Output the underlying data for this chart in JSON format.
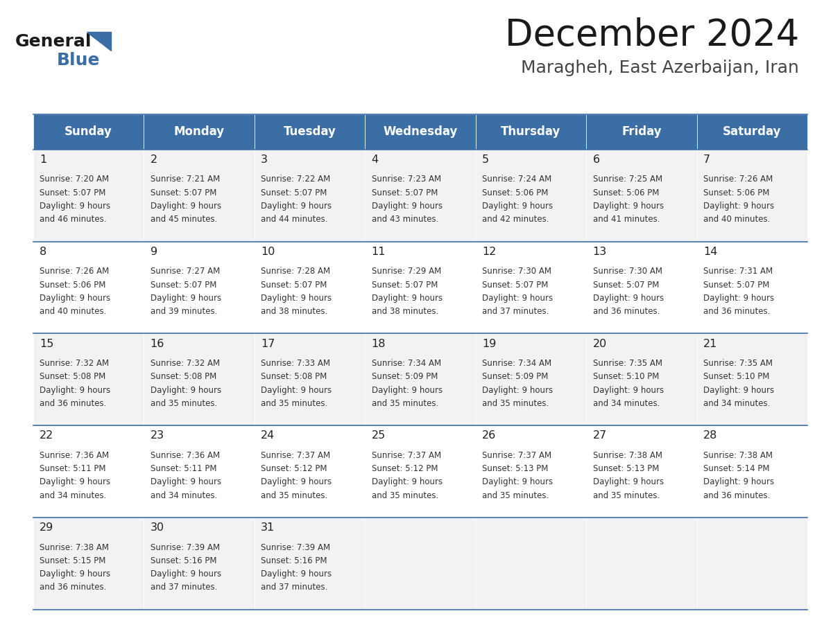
{
  "title": "December 2024",
  "subtitle": "Maragheh, East Azerbaijan, Iran",
  "header_bg": "#3b6ea5",
  "header_text": "#ffffff",
  "day_headers": [
    "Sunday",
    "Monday",
    "Tuesday",
    "Wednesday",
    "Thursday",
    "Friday",
    "Saturday"
  ],
  "row_bg_odd": "#f2f2f2",
  "row_bg_even": "#ffffff",
  "cell_text_color": "#333333",
  "day_num_color": "#222222",
  "border_color": "#3b6ea5",
  "calendar": [
    [
      {
        "day": 1,
        "sunrise": "7:20 AM",
        "sunset": "5:07 PM",
        "daylight": "9 hours and 46 minutes."
      },
      {
        "day": 2,
        "sunrise": "7:21 AM",
        "sunset": "5:07 PM",
        "daylight": "9 hours and 45 minutes."
      },
      {
        "day": 3,
        "sunrise": "7:22 AM",
        "sunset": "5:07 PM",
        "daylight": "9 hours and 44 minutes."
      },
      {
        "day": 4,
        "sunrise": "7:23 AM",
        "sunset": "5:07 PM",
        "daylight": "9 hours and 43 minutes."
      },
      {
        "day": 5,
        "sunrise": "7:24 AM",
        "sunset": "5:06 PM",
        "daylight": "9 hours and 42 minutes."
      },
      {
        "day": 6,
        "sunrise": "7:25 AM",
        "sunset": "5:06 PM",
        "daylight": "9 hours and 41 minutes."
      },
      {
        "day": 7,
        "sunrise": "7:26 AM",
        "sunset": "5:06 PM",
        "daylight": "9 hours and 40 minutes."
      }
    ],
    [
      {
        "day": 8,
        "sunrise": "7:26 AM",
        "sunset": "5:06 PM",
        "daylight": "9 hours and 40 minutes."
      },
      {
        "day": 9,
        "sunrise": "7:27 AM",
        "sunset": "5:07 PM",
        "daylight": "9 hours and 39 minutes."
      },
      {
        "day": 10,
        "sunrise": "7:28 AM",
        "sunset": "5:07 PM",
        "daylight": "9 hours and 38 minutes."
      },
      {
        "day": 11,
        "sunrise": "7:29 AM",
        "sunset": "5:07 PM",
        "daylight": "9 hours and 38 minutes."
      },
      {
        "day": 12,
        "sunrise": "7:30 AM",
        "sunset": "5:07 PM",
        "daylight": "9 hours and 37 minutes."
      },
      {
        "day": 13,
        "sunrise": "7:30 AM",
        "sunset": "5:07 PM",
        "daylight": "9 hours and 36 minutes."
      },
      {
        "day": 14,
        "sunrise": "7:31 AM",
        "sunset": "5:07 PM",
        "daylight": "9 hours and 36 minutes."
      }
    ],
    [
      {
        "day": 15,
        "sunrise": "7:32 AM",
        "sunset": "5:08 PM",
        "daylight": "9 hours and 36 minutes."
      },
      {
        "day": 16,
        "sunrise": "7:32 AM",
        "sunset": "5:08 PM",
        "daylight": "9 hours and 35 minutes."
      },
      {
        "day": 17,
        "sunrise": "7:33 AM",
        "sunset": "5:08 PM",
        "daylight": "9 hours and 35 minutes."
      },
      {
        "day": 18,
        "sunrise": "7:34 AM",
        "sunset": "5:09 PM",
        "daylight": "9 hours and 35 minutes."
      },
      {
        "day": 19,
        "sunrise": "7:34 AM",
        "sunset": "5:09 PM",
        "daylight": "9 hours and 35 minutes."
      },
      {
        "day": 20,
        "sunrise": "7:35 AM",
        "sunset": "5:10 PM",
        "daylight": "9 hours and 34 minutes."
      },
      {
        "day": 21,
        "sunrise": "7:35 AM",
        "sunset": "5:10 PM",
        "daylight": "9 hours and 34 minutes."
      }
    ],
    [
      {
        "day": 22,
        "sunrise": "7:36 AM",
        "sunset": "5:11 PM",
        "daylight": "9 hours and 34 minutes."
      },
      {
        "day": 23,
        "sunrise": "7:36 AM",
        "sunset": "5:11 PM",
        "daylight": "9 hours and 34 minutes."
      },
      {
        "day": 24,
        "sunrise": "7:37 AM",
        "sunset": "5:12 PM",
        "daylight": "9 hours and 35 minutes."
      },
      {
        "day": 25,
        "sunrise": "7:37 AM",
        "sunset": "5:12 PM",
        "daylight": "9 hours and 35 minutes."
      },
      {
        "day": 26,
        "sunrise": "7:37 AM",
        "sunset": "5:13 PM",
        "daylight": "9 hours and 35 minutes."
      },
      {
        "day": 27,
        "sunrise": "7:38 AM",
        "sunset": "5:13 PM",
        "daylight": "9 hours and 35 minutes."
      },
      {
        "day": 28,
        "sunrise": "7:38 AM",
        "sunset": "5:14 PM",
        "daylight": "9 hours and 36 minutes."
      }
    ],
    [
      {
        "day": 29,
        "sunrise": "7:38 AM",
        "sunset": "5:15 PM",
        "daylight": "9 hours and 36 minutes."
      },
      {
        "day": 30,
        "sunrise": "7:39 AM",
        "sunset": "5:16 PM",
        "daylight": "9 hours and 37 minutes."
      },
      {
        "day": 31,
        "sunrise": "7:39 AM",
        "sunset": "5:16 PM",
        "daylight": "9 hours and 37 minutes."
      },
      null,
      null,
      null,
      null
    ]
  ],
  "logo_general_color": "#1a1a1a",
  "logo_blue_color": "#3b6ea5",
  "fig_width": 11.88,
  "fig_height": 9.18
}
